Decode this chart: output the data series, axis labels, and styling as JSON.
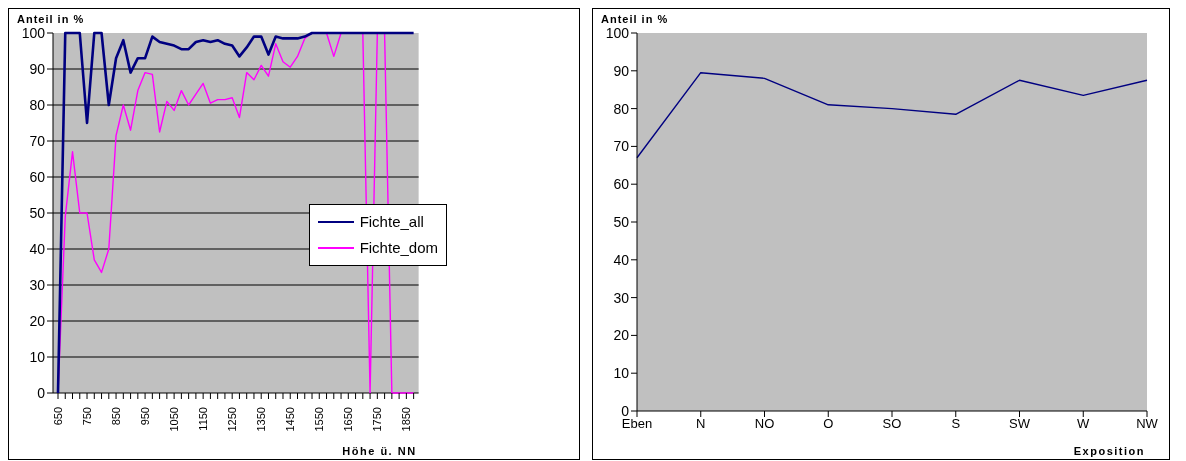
{
  "chart_data": [
    {
      "type": "line",
      "ylabel": "Anteil in %",
      "xlabel": "Höhe ü. NN",
      "categories": [
        "650",
        null,
        null,
        null,
        "750",
        null,
        null,
        null,
        "850",
        null,
        null,
        null,
        "950",
        null,
        null,
        null,
        "1050",
        null,
        null,
        null,
        "1150",
        null,
        null,
        null,
        "1250",
        null,
        null,
        null,
        "1350",
        null,
        null,
        null,
        "1450",
        null,
        null,
        null,
        "1550",
        null,
        null,
        null,
        "1650",
        null,
        null,
        null,
        "1750",
        null,
        null,
        null,
        "1850",
        null
      ],
      "series": [
        {
          "name": "Fichte_all",
          "color": "#000080",
          "values": [
            0,
            100,
            100,
            100,
            75,
            100,
            100,
            80,
            93,
            98,
            89,
            93,
            93,
            99,
            97.5,
            97,
            96.5,
            95.5,
            95.5,
            97.5,
            98,
            97.5,
            98,
            97,
            96.5,
            93.5,
            96,
            99,
            99,
            94,
            99,
            98.5,
            98.5,
            98.5,
            99,
            100,
            100,
            100,
            100,
            100,
            100,
            100,
            100,
            100,
            100,
            100,
            100,
            100,
            100,
            100
          ]
        },
        {
          "name": "Fichte_dom",
          "color": "#ff00ff",
          "values": [
            0,
            49,
            67,
            50,
            50,
            37,
            33.5,
            40,
            71.5,
            80,
            73,
            84,
            89,
            88.5,
            72.5,
            81,
            78.5,
            84,
            80,
            83,
            86,
            80.5,
            81.5,
            81.5,
            82,
            76.5,
            89,
            87,
            91,
            88,
            97,
            92,
            90.5,
            93.5,
            98.5,
            100,
            100,
            100,
            93.5,
            100,
            100,
            100,
            100,
            0,
            100,
            100,
            0,
            0,
            0,
            0
          ]
        }
      ],
      "ylim": [
        0,
        100
      ],
      "yticks": [
        0,
        10,
        20,
        30,
        40,
        50,
        60,
        70,
        80,
        90,
        100
      ],
      "grid": "y",
      "legend": "right",
      "marker": "none",
      "line_style": "solid"
    },
    {
      "type": "line",
      "ylabel": "Anteil in %",
      "xlabel": "Exposition",
      "categories": [
        "Eben",
        "N",
        "NO",
        "O",
        "SO",
        "S",
        "SW",
        "W",
        "NW"
      ],
      "series": [
        {
          "color": "#000080",
          "values": [
            67,
            89.5,
            88,
            81,
            80,
            78.5,
            87.5,
            83.5,
            87.5
          ]
        }
      ],
      "ylim": [
        0,
        100
      ],
      "yticks": [
        0,
        10,
        20,
        30,
        40,
        50,
        60,
        70,
        80,
        90,
        100
      ],
      "marker": "none",
      "line_style": "solid"
    }
  ]
}
